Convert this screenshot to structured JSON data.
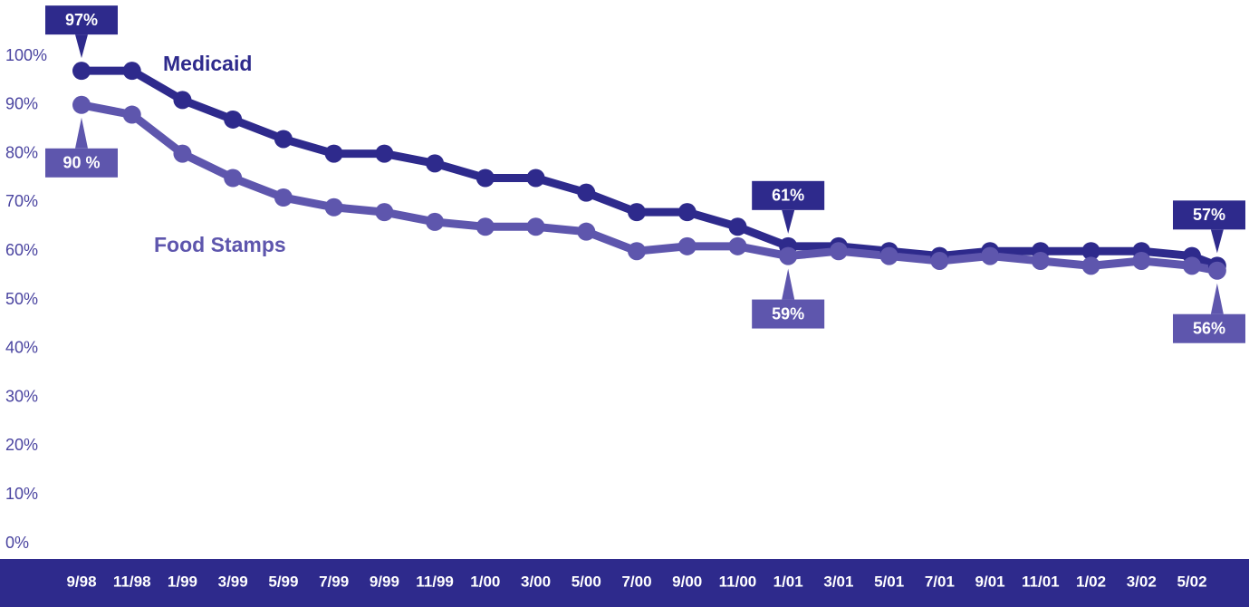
{
  "chart_data": {
    "type": "line",
    "categories": [
      "9/98",
      "11/98",
      "1/99",
      "3/99",
      "5/99",
      "7/99",
      "9/99",
      "11/99",
      "1/00",
      "3/00",
      "5/00",
      "7/00",
      "9/00",
      "11/00",
      "1/01",
      "3/01",
      "5/01",
      "7/01",
      "9/01",
      "11/01",
      "1/02",
      "3/02",
      "5/02",
      null
    ],
    "series": [
      {
        "name": "Medicaid",
        "color": "#2e2a8c",
        "values": [
          97,
          97,
          91,
          87,
          83,
          80,
          80,
          78,
          75,
          75,
          72,
          68,
          68,
          65,
          61,
          61,
          60,
          59,
          60,
          60,
          60,
          60,
          59,
          57
        ],
        "value_labels": [
          "97%",
          null,
          null,
          null,
          null,
          null,
          null,
          null,
          null,
          null,
          null,
          null,
          null,
          null,
          "61%",
          null,
          null,
          null,
          null,
          null,
          null,
          null,
          null,
          "57%"
        ]
      },
      {
        "name": "Food Stamps",
        "color": "#5e56ad",
        "values": [
          90,
          88,
          80,
          75,
          71,
          69,
          68,
          66,
          65,
          65,
          64,
          60,
          61,
          61,
          59,
          60,
          59,
          58,
          59,
          58,
          57,
          58,
          57,
          56
        ],
        "value_labels": [
          "90 %",
          null,
          null,
          null,
          null,
          null,
          null,
          null,
          null,
          null,
          null,
          null,
          null,
          null,
          "59%",
          null,
          null,
          null,
          null,
          null,
          null,
          null,
          null,
          "56%"
        ]
      }
    ],
    "ylim": [
      0,
      100
    ],
    "yticks": [
      {
        "value": 0,
        "label": "0%"
      },
      {
        "value": 10,
        "label": "10%"
      },
      {
        "value": 20,
        "label": "20%"
      },
      {
        "value": 30,
        "label": "30%"
      },
      {
        "value": 40,
        "label": "40%"
      },
      {
        "value": 50,
        "label": "50%"
      },
      {
        "value": 60,
        "label": "60%"
      },
      {
        "value": 70,
        "label": "70%"
      },
      {
        "value": 80,
        "label": "80%"
      },
      {
        "value": 90,
        "label": "90%"
      },
      {
        "value": 100,
        "label": "100%"
      }
    ],
    "grid": false
  }
}
